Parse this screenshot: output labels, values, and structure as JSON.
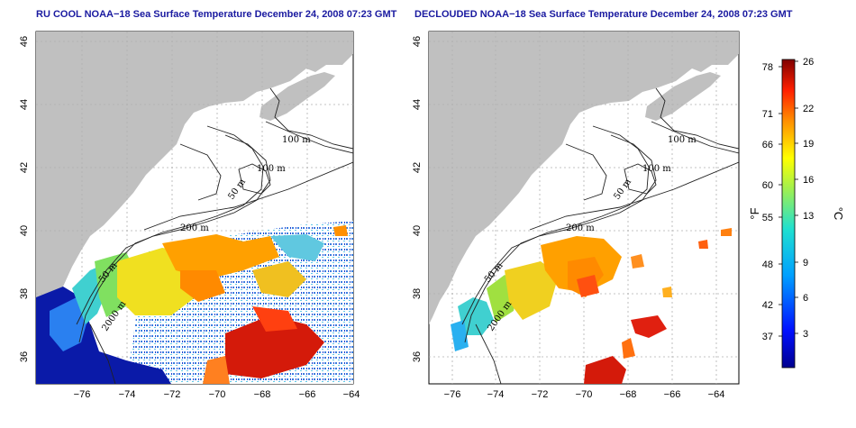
{
  "titles": {
    "left": "RU COOL NOAA−18 Sea Surface Temperature December 24, 2008 07:23 GMT",
    "right": "DECLOUDED NOAA−18 Sea Surface Temperature December 24, 2008 07:23 GMT"
  },
  "axes": {
    "lon_ticks": [
      "−76",
      "−74",
      "−72",
      "−70",
      "−68",
      "−66",
      "−64"
    ],
    "lat_ticks": [
      "46",
      "44",
      "42",
      "40",
      "38",
      "36"
    ]
  },
  "contours": {
    "left": [
      "100 m",
      "100 m",
      "50 m",
      "200 m",
      "50 m",
      "2000 m"
    ],
    "right": [
      "100 m",
      "100 m",
      "50 m",
      "200 m",
      "50 m",
      "2000 m"
    ]
  },
  "colorbar": {
    "fahrenheit_unit": "°F",
    "celsius_unit": "°C",
    "fahrenheit_ticks": [
      "78",
      "71",
      "66",
      "60",
      "55",
      "48",
      "42",
      "37"
    ],
    "celsius_ticks": [
      "26",
      "22",
      "19",
      "16",
      "13",
      "9",
      "6",
      "3"
    ]
  },
  "colors": {
    "land": "#c0c0c0",
    "title": "#1a1aa0",
    "warm": "#d41a0a",
    "cold": "#0a1aa8"
  }
}
